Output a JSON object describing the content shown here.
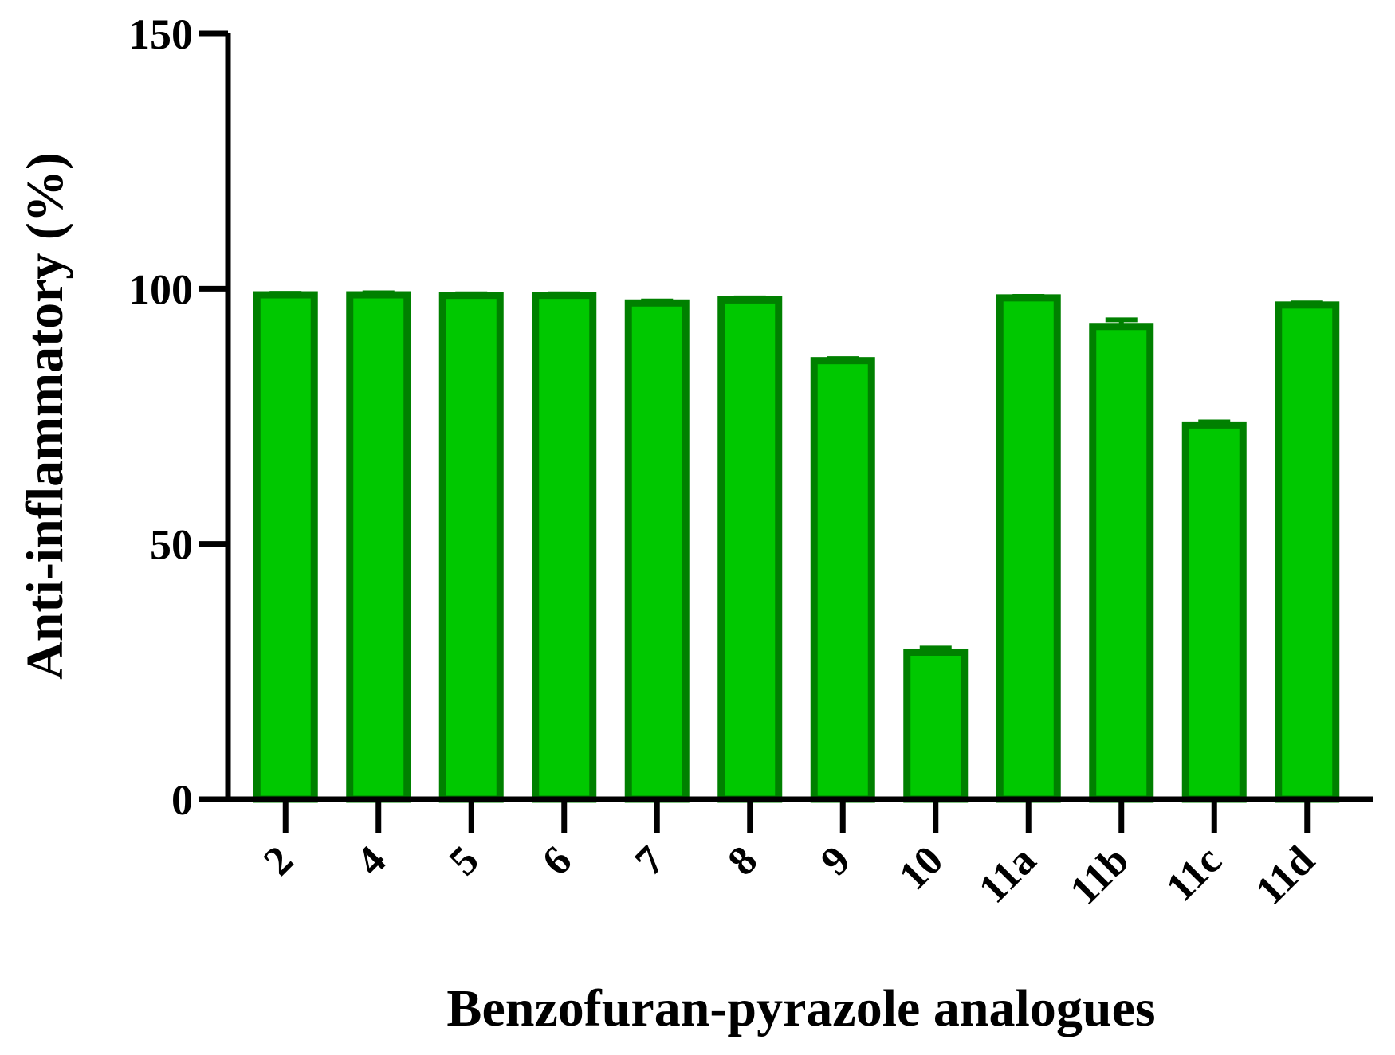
{
  "chart_data": {
    "type": "bar",
    "title": "",
    "xlabel": "Benzofuran-pyrazole analogues",
    "ylabel": "Anti-inflammatory  (%)",
    "ylim": [
      0,
      150
    ],
    "yticks": [
      0,
      50,
      100,
      150
    ],
    "grid": false,
    "categories": [
      "2",
      "4",
      "5",
      "6",
      "7",
      "8",
      "9",
      "10",
      "11a",
      "11b",
      "11c",
      "11d"
    ],
    "values": [
      98.8,
      98.8,
      98.7,
      98.7,
      97.2,
      97.8,
      85.9,
      28.8,
      98.2,
      92.6,
      73.3,
      96.8
    ],
    "errors": [
      0.3,
      0.4,
      0.3,
      0.3,
      0.4,
      0.4,
      0.4,
      0.8,
      0.3,
      1.3,
      0.6,
      0.4
    ],
    "colors": {
      "fill": "#00c800",
      "stroke": "#008000",
      "axis": "#000000"
    }
  }
}
